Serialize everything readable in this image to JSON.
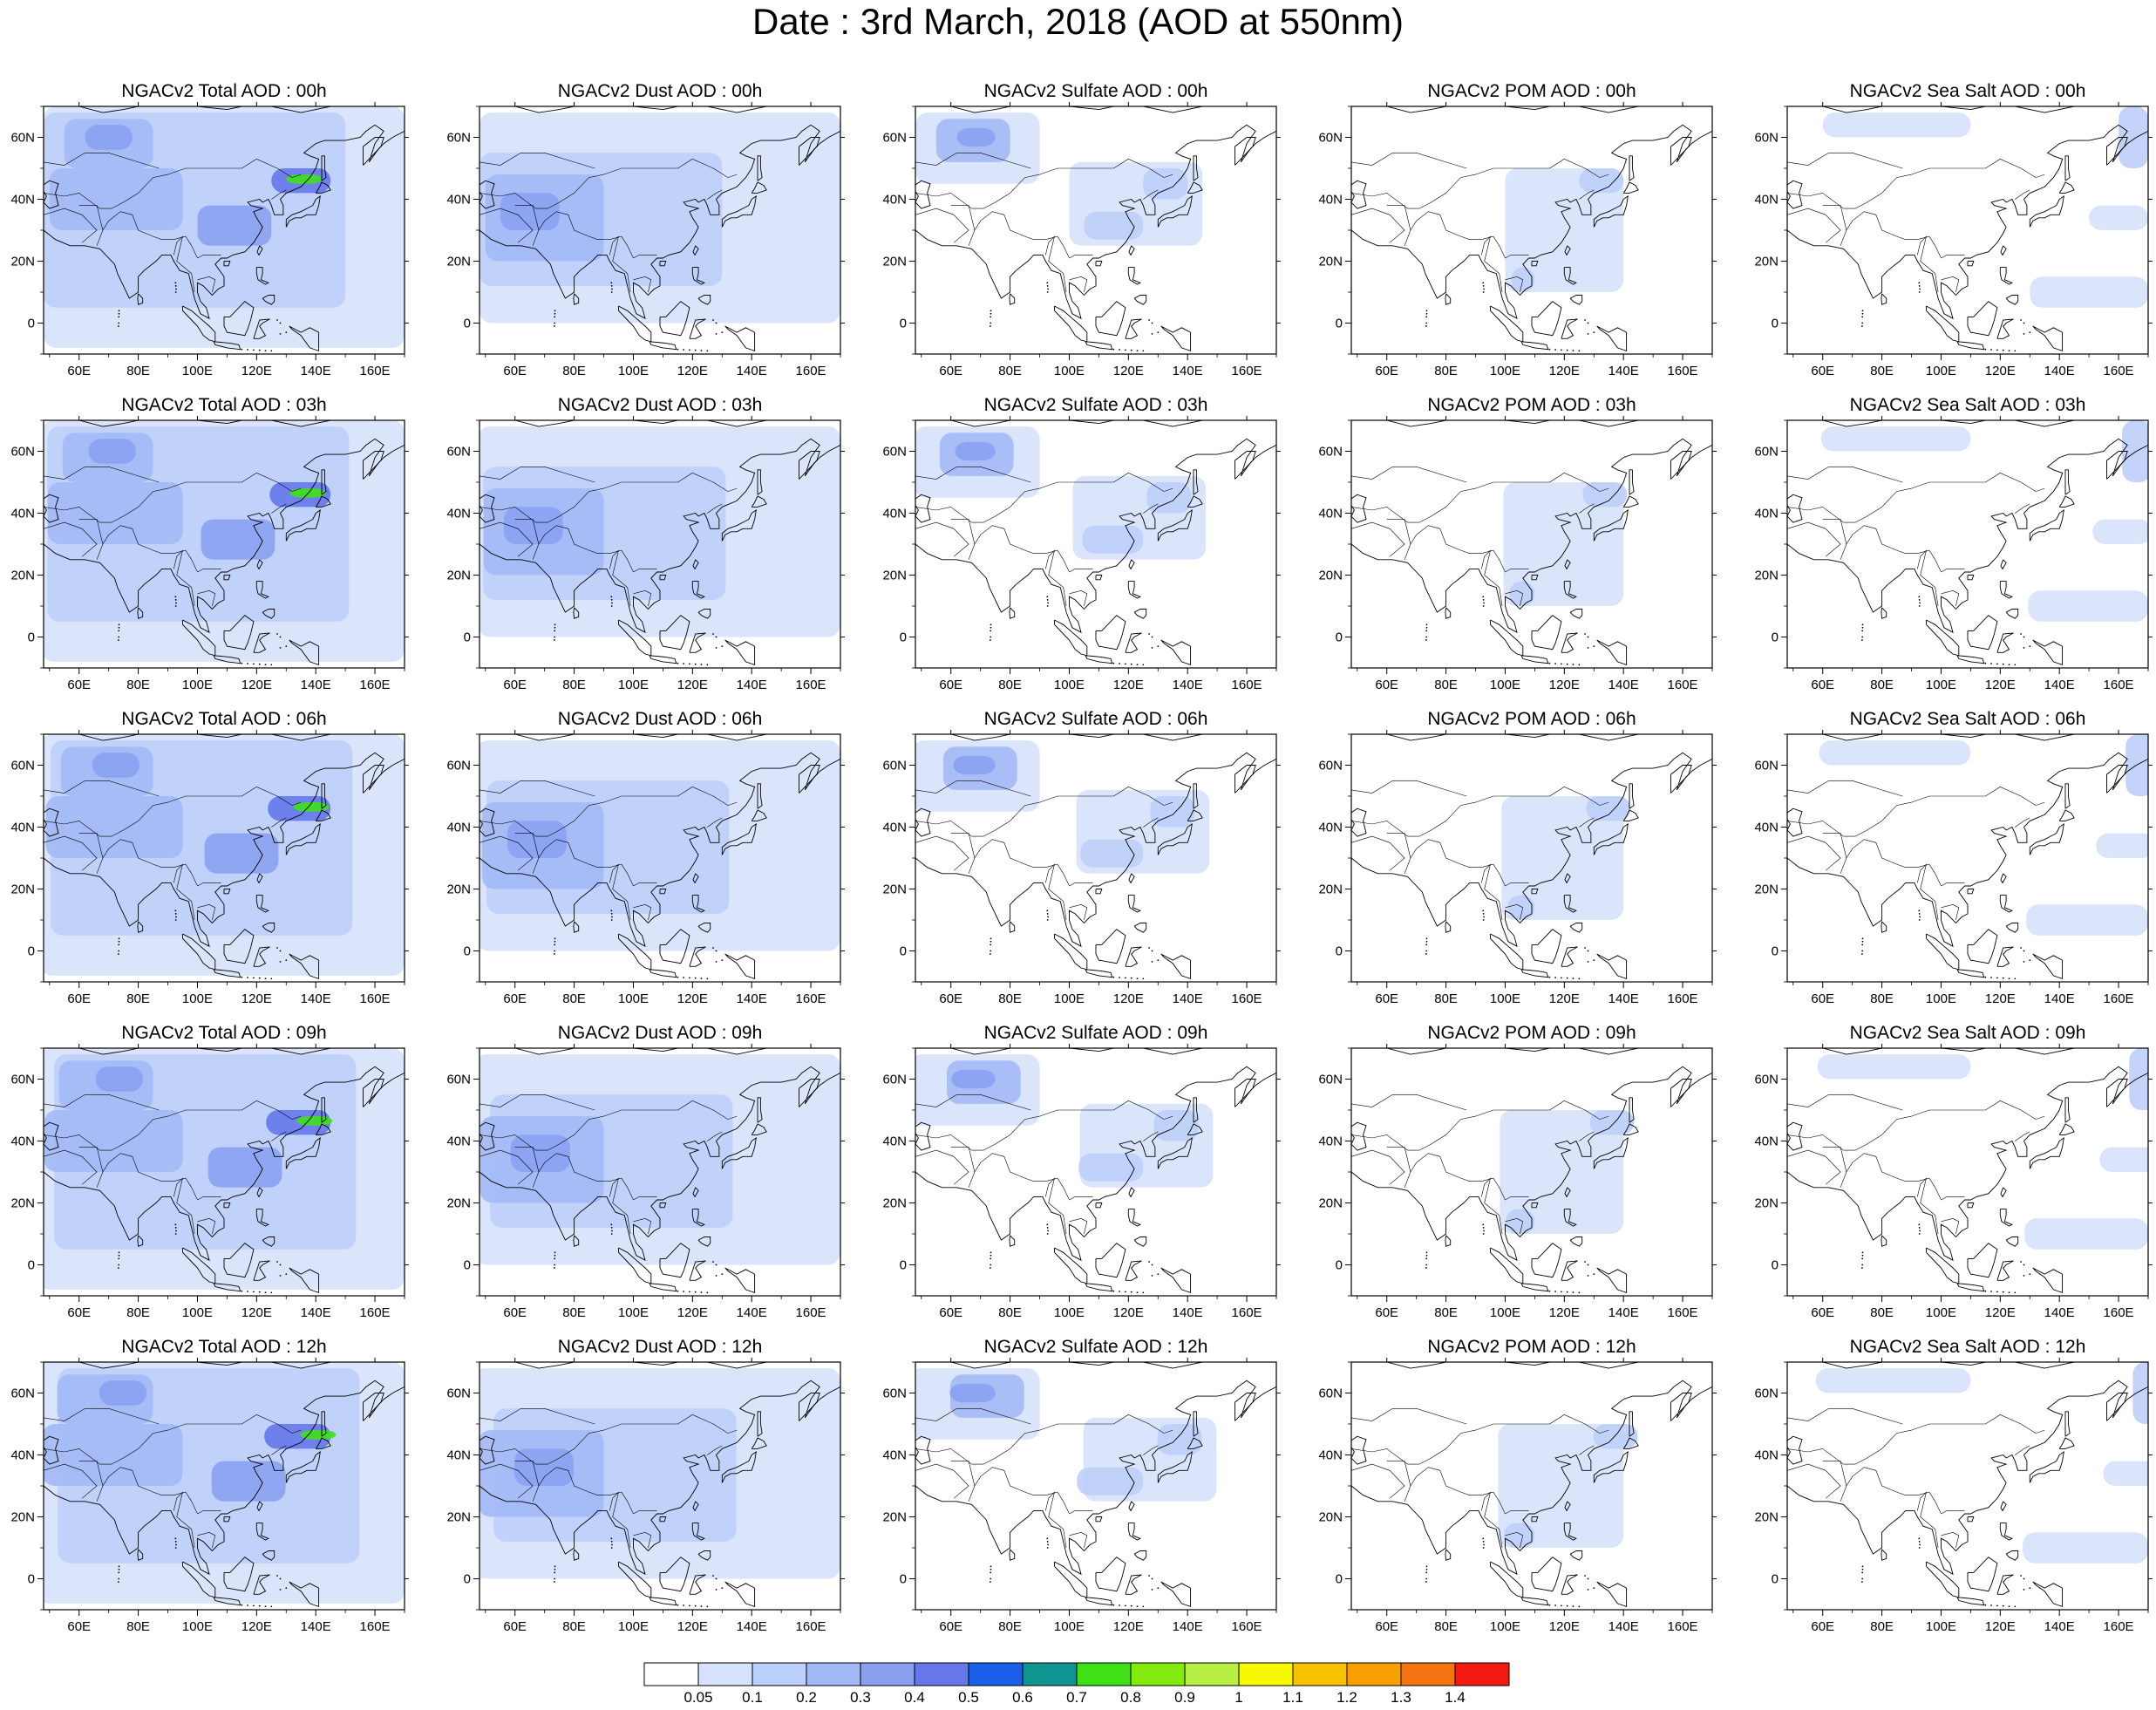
{
  "title": "Date : 3rd March, 2018 (AOD at 550nm)",
  "map": {
    "lon_range": [
      48,
      170
    ],
    "lat_range": [
      -10,
      70
    ],
    "lon_ticks": [
      {
        "v": 60,
        "label": "60E"
      },
      {
        "v": 80,
        "label": "80E"
      },
      {
        "v": 100,
        "label": "100E"
      },
      {
        "v": 120,
        "label": "120E"
      },
      {
        "v": 140,
        "label": "140E"
      },
      {
        "v": 160,
        "label": "160E"
      }
    ],
    "lat_ticks": [
      {
        "v": 0,
        "label": "0"
      },
      {
        "v": 20,
        "label": "20N"
      },
      {
        "v": 40,
        "label": "40N"
      },
      {
        "v": 60,
        "label": "60N"
      }
    ]
  },
  "columns": [
    "Total",
    "Dust",
    "Sulfate",
    "POM",
    "Sea Salt"
  ],
  "rows": [
    "00h",
    "03h",
    "06h",
    "09h",
    "12h"
  ],
  "panel_titles": [
    [
      "NGACv2 Total AOD : 00h",
      "NGACv2 Dust AOD : 00h",
      "NGACv2 Sulfate AOD : 00h",
      "NGACv2 POM AOD : 00h",
      "NGACv2 Sea Salt AOD : 00h"
    ],
    [
      "NGACv2 Total AOD : 03h",
      "NGACv2 Dust AOD : 03h",
      "NGACv2 Sulfate AOD : 03h",
      "NGACv2 POM AOD : 03h",
      "NGACv2 Sea Salt AOD : 03h"
    ],
    [
      "NGACv2 Total AOD : 06h",
      "NGACv2 Dust AOD : 06h",
      "NGACv2 Sulfate AOD : 06h",
      "NGACv2 POM AOD : 06h",
      "NGACv2 Sea Salt AOD : 06h"
    ],
    [
      "NGACv2 Total AOD : 09h",
      "NGACv2 Dust AOD : 09h",
      "NGACv2 Sulfate AOD : 09h",
      "NGACv2 POM AOD : 09h",
      "NGACv2 Sea Salt  AOD : 09h"
    ],
    [
      "NGACv2 Total AOD  : 12h",
      "NGACv2 Dust AOD : 12h",
      "NGACv2 Sulfate AOD : 12h",
      "NGACv2 POM  AOD : 12h",
      "NGACv2 Sea Salt  AOD : 12h"
    ]
  ],
  "colorbar": {
    "labels": [
      "0.05",
      "0.1",
      "0.2",
      "0.3",
      "0.4",
      "0.5",
      "0.6",
      "0.7",
      "0.8",
      "0.9",
      "1",
      "1.1",
      "1.2",
      "1.3",
      "1.4"
    ],
    "colors": [
      "#ffffff",
      "#d6e1fb",
      "#bccefa",
      "#a3b9f6",
      "#8aa1f1",
      "#6577ea",
      "#1a5eea",
      "#0f9492",
      "#3ee116",
      "#82ea0f",
      "#b9ee44",
      "#f8f800",
      "#f8c200",
      "#f8a000",
      "#f57412",
      "#f31a14"
    ]
  },
  "aerosol_fields": {
    "Total": [
      {
        "lon": [
          48,
          170
        ],
        "lat": [
          -8,
          70
        ],
        "level": 1
      },
      {
        "lon": [
          48,
          150
        ],
        "lat": [
          5,
          68
        ],
        "level": 2
      },
      {
        "lon": [
          55,
          85
        ],
        "lat": [
          50,
          66
        ],
        "level": 3
      },
      {
        "lon": [
          62,
          78
        ],
        "lat": [
          56,
          64
        ],
        "level": 4
      },
      {
        "lon": [
          50,
          95
        ],
        "lat": [
          30,
          50
        ],
        "level": 3
      },
      {
        "lon": [
          100,
          125
        ],
        "lat": [
          25,
          38
        ],
        "level": 4
      },
      {
        "lon": [
          125,
          145
        ],
        "lat": [
          42,
          50
        ],
        "level": 5
      },
      {
        "lon": [
          130,
          142
        ],
        "lat": [
          45,
          48
        ],
        "level": 8
      }
    ],
    "Dust": [
      {
        "lon": [
          48,
          170
        ],
        "lat": [
          0,
          68
        ],
        "level": 1
      },
      {
        "lon": [
          48,
          130
        ],
        "lat": [
          12,
          55
        ],
        "level": 2
      },
      {
        "lon": [
          50,
          90
        ],
        "lat": [
          20,
          48
        ],
        "level": 3
      },
      {
        "lon": [
          55,
          75
        ],
        "lat": [
          30,
          42
        ],
        "level": 4
      }
    ],
    "Sulfate": [
      {
        "lon": [
          48,
          90
        ],
        "lat": [
          45,
          68
        ],
        "level": 1
      },
      {
        "lon": [
          55,
          80
        ],
        "lat": [
          52,
          66
        ],
        "level": 3
      },
      {
        "lon": [
          62,
          75
        ],
        "lat": [
          57,
          63
        ],
        "level": 4
      },
      {
        "lon": [
          100,
          145
        ],
        "lat": [
          25,
          52
        ],
        "level": 1
      },
      {
        "lon": [
          105,
          125
        ],
        "lat": [
          27,
          36
        ],
        "level": 2
      },
      {
        "lon": [
          125,
          140
        ],
        "lat": [
          40,
          50
        ],
        "level": 2
      }
    ],
    "POM": [
      {
        "lon": [
          100,
          140
        ],
        "lat": [
          10,
          50
        ],
        "level": 1
      },
      {
        "lon": [
          125,
          140
        ],
        "lat": [
          42,
          50
        ],
        "level": 2
      },
      {
        "lon": [
          102,
          110
        ],
        "lat": [
          10,
          18
        ],
        "level": 2
      }
    ],
    "Sea Salt": [
      {
        "lon": [
          60,
          110
        ],
        "lat": [
          60,
          68
        ],
        "level": 1
      },
      {
        "lon": [
          160,
          170
        ],
        "lat": [
          50,
          70
        ],
        "level": 2
      },
      {
        "lon": [
          130,
          170
        ],
        "lat": [
          5,
          15
        ],
        "level": 1
      },
      {
        "lon": [
          150,
          170
        ],
        "lat": [
          30,
          38
        ],
        "level": 1
      }
    ]
  }
}
